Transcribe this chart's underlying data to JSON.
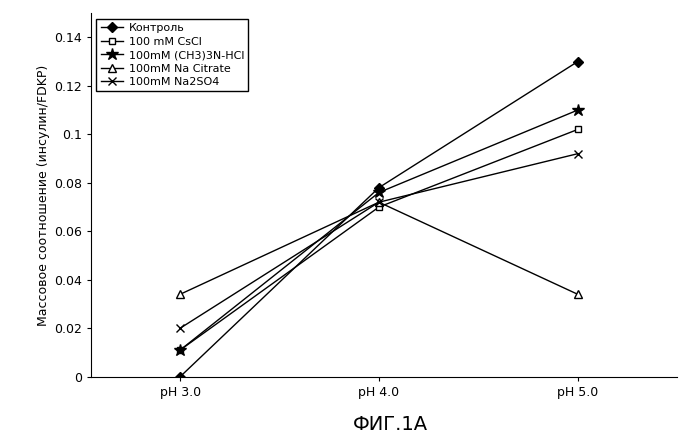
{
  "x_labels": [
    "pH 3.0",
    "pH 4.0",
    "pH 5.0"
  ],
  "x_values": [
    3.0,
    4.0,
    5.0
  ],
  "series": [
    {
      "label": "Контроль",
      "y": [
        0.0,
        0.078,
        0.13
      ],
      "marker": "D",
      "marker_size": 5,
      "color": "#000000",
      "linestyle": "-",
      "fillstyle": "full",
      "markerfacecolor": "#000000"
    },
    {
      "label": "100 mM CsCl",
      "y": [
        0.011,
        0.07,
        0.102
      ],
      "marker": "s",
      "marker_size": 5,
      "color": "#000000",
      "linestyle": "-",
      "fillstyle": "none",
      "markerfacecolor": "white"
    },
    {
      "label": "100mM (CH3)3N-HCl",
      "y": [
        0.011,
        0.076,
        0.11
      ],
      "marker": "*",
      "marker_size": 9,
      "color": "#000000",
      "linestyle": "-",
      "fillstyle": "full",
      "markerfacecolor": "#000000"
    },
    {
      "label": "100mM Na Citrate",
      "y": [
        0.034,
        0.072,
        0.034
      ],
      "marker": "^",
      "marker_size": 6,
      "color": "#000000",
      "linestyle": "-",
      "fillstyle": "none",
      "markerfacecolor": "white"
    },
    {
      "label": "100mM Na2SO4",
      "y": [
        0.02,
        0.072,
        0.092
      ],
      "marker": "x",
      "marker_size": 6,
      "color": "#000000",
      "linestyle": "-",
      "fillstyle": "full",
      "markerfacecolor": "#000000"
    }
  ],
  "ylabel": "Массовое соотношение (инсулин/FDKP)",
  "xlabel_bottom": "ФИГ.1А",
  "ylim": [
    0,
    0.15
  ],
  "yticks": [
    0,
    0.02,
    0.04,
    0.06,
    0.08,
    0.1,
    0.12,
    0.14
  ],
  "background_color": "#ffffff",
  "legend_fontsize": 8,
  "axis_fontsize": 9,
  "title_fontsize": 14,
  "linewidth": 1.0
}
